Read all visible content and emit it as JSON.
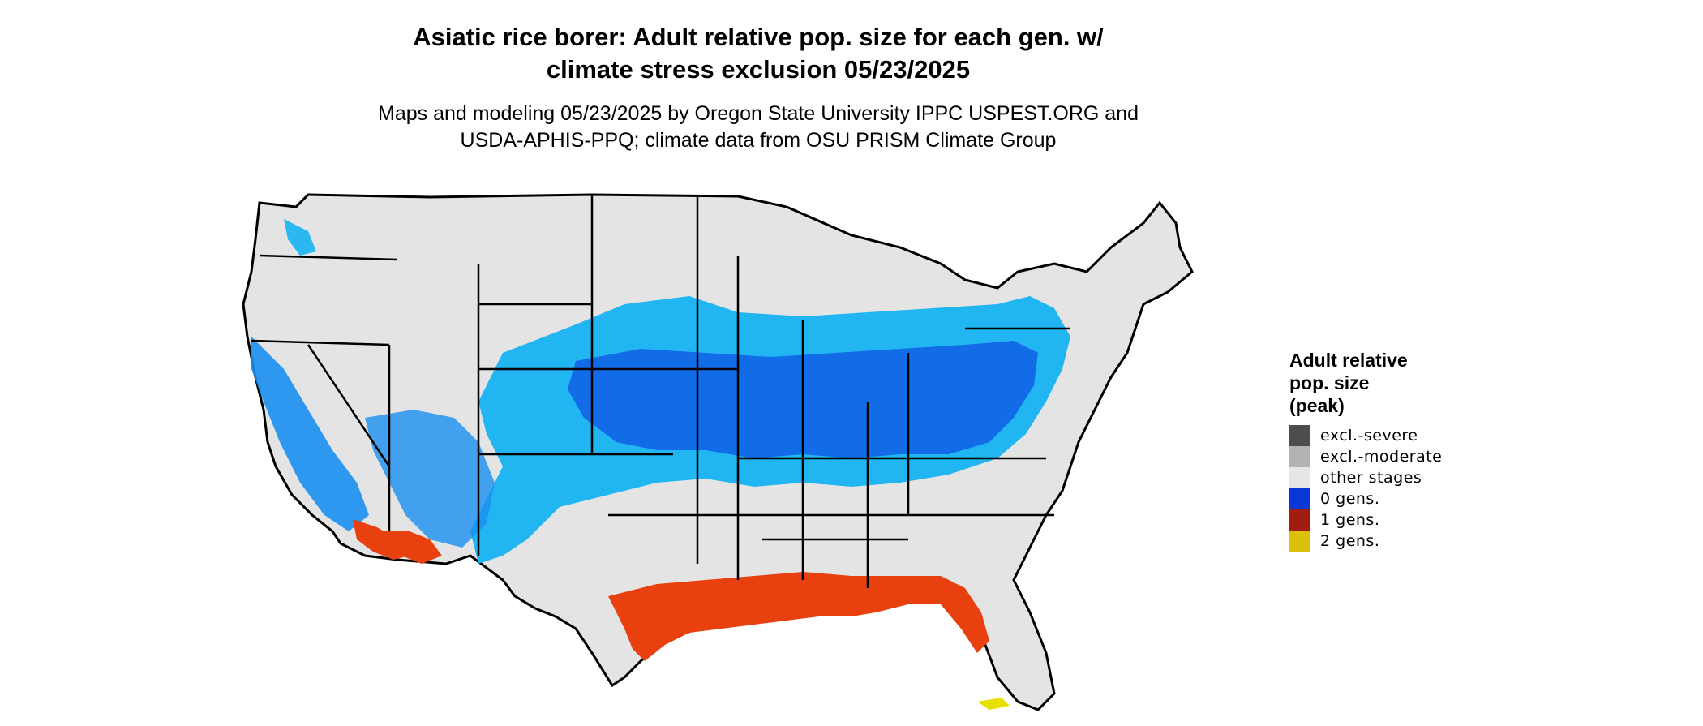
{
  "title_line1": "Asiatic rice borer: Adult relative pop. size for each gen. w/",
  "title_line2": "climate stress exclusion 05/23/2025",
  "subtitle_line1": "Maps and modeling 05/23/2025 by Oregon State University IPPC USPEST.ORG and",
  "subtitle_line2": "USDA-APHIS-PPQ; climate data from OSU PRISM Climate Group",
  "legend": {
    "title_lines": [
      "Adult relative",
      "pop. size",
      "(peak)"
    ],
    "items": [
      {
        "label": "excl.-severe",
        "color": "#4d4d4d"
      },
      {
        "label": "excl.-moderate",
        "color": "#b3b3b3"
      },
      {
        "label": "other stages",
        "color": "#e6e6e6"
      },
      {
        "label": "0 gens.",
        "color": "#0b36d8"
      },
      {
        "label": "1 gens.",
        "color": "#a31c14"
      },
      {
        "label": "2 gens.",
        "color": "#dcc10a"
      }
    ]
  },
  "map_colors": {
    "land": "#e4e4e4",
    "border": "#000000",
    "light_blue": "#16b3f2",
    "mid_blue": "#1a8ef0",
    "deep_blue": "#0f5fe6",
    "orange_red": "#e8400e",
    "yellow": "#e8e000"
  }
}
